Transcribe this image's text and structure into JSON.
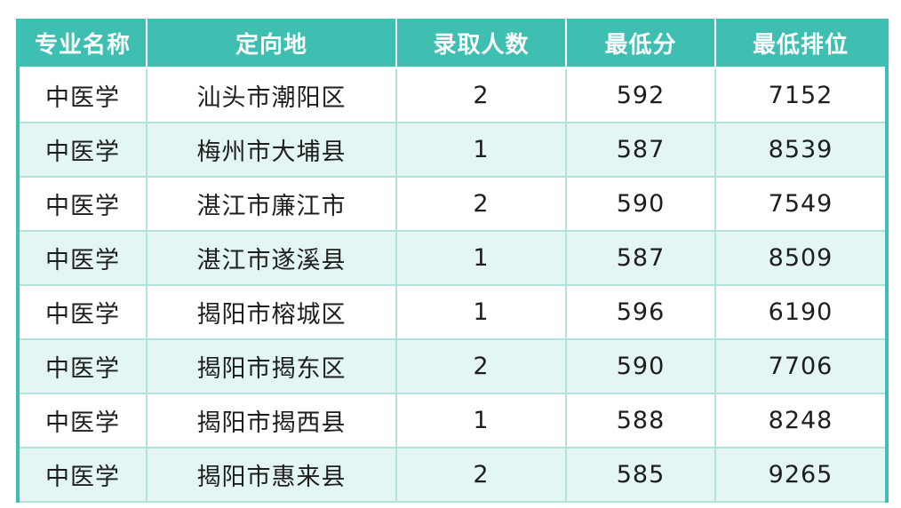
{
  "chart_data": {
    "type": "table",
    "columns": [
      "专业名称",
      "定向地",
      "录取人数",
      "最低分",
      "最低排位"
    ],
    "rows": [
      [
        "中医学",
        "汕头市潮阳区",
        "2",
        "592",
        "7152"
      ],
      [
        "中医学",
        "梅州市大埔县",
        "1",
        "587",
        "8539"
      ],
      [
        "中医学",
        "湛江市廉江市",
        "2",
        "590",
        "7549"
      ],
      [
        "中医学",
        "湛江市遂溪县",
        "1",
        "587",
        "8509"
      ],
      [
        "中医学",
        "揭阳市榕城区",
        "1",
        "596",
        "6190"
      ],
      [
        "中医学",
        "揭阳市揭东区",
        "2",
        "590",
        "7706"
      ],
      [
        "中医学",
        "揭阳市揭西县",
        "1",
        "588",
        "8248"
      ],
      [
        "中医学",
        "揭阳市惠来县",
        "2",
        "585",
        "9265"
      ]
    ],
    "layout": {
      "grid": "on",
      "row_striping": "alternating starting with white",
      "header_position": "top"
    }
  },
  "colors": {
    "header_bg": "#3fbfb1",
    "header_text": "#ffffff",
    "row_bg": "#ffffff",
    "row_alt_bg": "#e3f6f3",
    "grid_line": "#b3e2db",
    "outer_border": "#3fbfb1",
    "cell_text": "#1e1e1e",
    "page_bg": "#ffffff"
  }
}
